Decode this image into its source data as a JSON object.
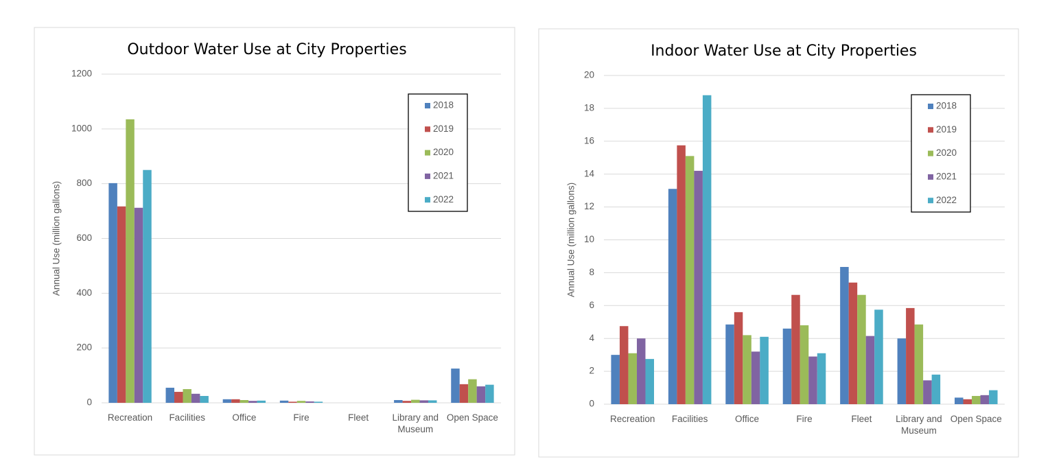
{
  "chart_data": [
    {
      "type": "bar",
      "title": "Outdoor Water Use at City Properties",
      "y_label": "Annual Use (million gallons)",
      "categories": [
        "Recreation",
        "Facilities",
        "Office",
        "Fire",
        "Fleet",
        "Library and Museum",
        "Open Space"
      ],
      "series": [
        {
          "name": "2018",
          "color": "#4f81bd",
          "values": [
            802,
            55,
            13,
            8,
            0,
            10,
            125
          ]
        },
        {
          "name": "2019",
          "color": "#c0504d",
          "values": [
            717,
            40,
            13,
            4,
            0,
            7,
            68
          ]
        },
        {
          "name": "2020",
          "color": "#9bbb59",
          "values": [
            1035,
            50,
            10,
            7,
            0,
            11,
            86
          ]
        },
        {
          "name": "2021",
          "color": "#8064a2",
          "values": [
            712,
            33,
            7,
            5,
            0,
            9,
            60
          ]
        },
        {
          "name": "2022",
          "color": "#4bacc6",
          "values": [
            850,
            25,
            8,
            4,
            0,
            9,
            66
          ]
        }
      ],
      "ylim": [
        0,
        1200
      ],
      "yticks": [
        0,
        200,
        400,
        600,
        800,
        1000,
        1200
      ],
      "grid": true,
      "legend": "upper right"
    },
    {
      "type": "bar",
      "title": "Indoor Water Use at City Properties",
      "y_label": "Annual Use (million gallons)",
      "categories": [
        "Recreation",
        "Facilities",
        "Office",
        "Fire",
        "Fleet",
        "Library and Museum",
        "Open Space"
      ],
      "series": [
        {
          "name": "2018",
          "color": "#4f81bd",
          "values": [
            3.0,
            13.1,
            4.85,
            4.6,
            8.35,
            4.0,
            0.4
          ]
        },
        {
          "name": "2019",
          "color": "#c0504d",
          "values": [
            4.75,
            15.75,
            5.6,
            6.65,
            7.4,
            5.85,
            0.3
          ]
        },
        {
          "name": "2020",
          "color": "#9bbb59",
          "values": [
            3.1,
            15.1,
            4.2,
            4.8,
            6.65,
            4.85,
            0.5
          ]
        },
        {
          "name": "2021",
          "color": "#8064a2",
          "values": [
            4.0,
            14.2,
            3.2,
            2.9,
            4.15,
            1.45,
            0.55
          ]
        },
        {
          "name": "2022",
          "color": "#4bacc6",
          "values": [
            2.75,
            18.8,
            4.1,
            3.1,
            5.75,
            1.8,
            0.85
          ]
        }
      ],
      "ylim": [
        0,
        20
      ],
      "yticks": [
        0,
        2,
        4,
        6,
        8,
        10,
        12,
        14,
        16,
        18,
        20
      ],
      "grid": true,
      "legend": "upper right"
    }
  ]
}
